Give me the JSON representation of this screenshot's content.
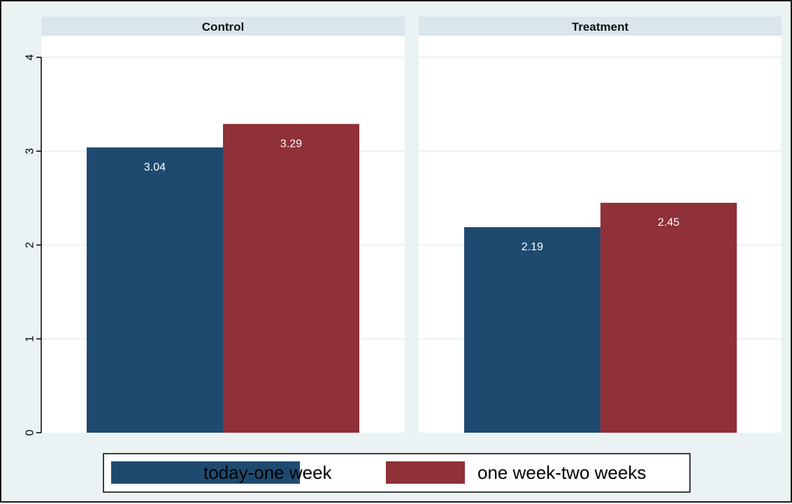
{
  "chart_data": {
    "type": "bar",
    "panels": [
      {
        "title": "Control",
        "values": [
          3.04,
          3.29
        ],
        "labels": [
          "3.04",
          "3.29"
        ]
      },
      {
        "title": "Treatment",
        "values": [
          2.19,
          2.45
        ],
        "labels": [
          "2.19",
          "2.45"
        ]
      }
    ],
    "series": [
      {
        "name": "today-one week",
        "color": "#1f4a70"
      },
      {
        "name": "one week-two weeks",
        "color": "#903038"
      }
    ],
    "ylim": [
      0,
      4.2
    ],
    "yticks": [
      "0",
      "1",
      "2",
      "3",
      "4"
    ],
    "grid": true,
    "legend_position": "bottom"
  }
}
